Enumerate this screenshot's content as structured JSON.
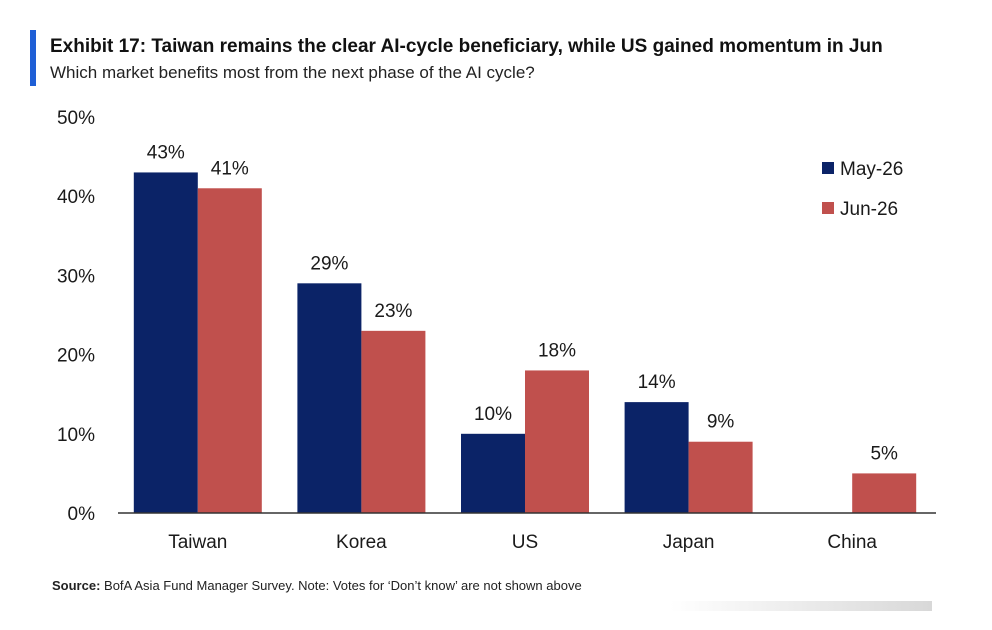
{
  "header": {
    "title": "Exhibit 17: Taiwan remains the clear AI-cycle beneficiary, while US gained momentum in Jun",
    "subtitle": "Which market benefits most from the next phase of the AI cycle?"
  },
  "footer": {
    "source_label": "Source:",
    "source_text": " BofA Asia Fund Manager Survey. Note: Votes for ‘Don’t know’ are not shown above"
  },
  "colors": {
    "accent": "#1f5fd6",
    "may": "#0b2367",
    "jun": "#c0504d",
    "axis": "#333333"
  },
  "chart_data": {
    "type": "bar",
    "title": "Exhibit 17: Taiwan remains the clear AI-cycle beneficiary, while US gained momentum in Jun",
    "subtitle": "Which market benefits most from the next phase of the AI cycle?",
    "categories": [
      "Taiwan",
      "Korea",
      "US",
      "Japan",
      "China"
    ],
    "series": [
      {
        "name": "May-26",
        "values": [
          43,
          29,
          10,
          14,
          null
        ],
        "labels": [
          "43%",
          "29%",
          "10%",
          "14%",
          ""
        ]
      },
      {
        "name": "Jun-26",
        "values": [
          41,
          23,
          18,
          9,
          5
        ],
        "labels": [
          "41%",
          "23%",
          "18%",
          "9%",
          "5%"
        ]
      }
    ],
    "ylim": [
      0,
      50
    ],
    "yticks": [
      0,
      10,
      20,
      30,
      40,
      50
    ],
    "ytick_labels": [
      "0%",
      "10%",
      "20%",
      "30%",
      "40%",
      "50%"
    ],
    "xlabel": "",
    "ylabel": "",
    "grid": false,
    "legend": "top-right"
  }
}
